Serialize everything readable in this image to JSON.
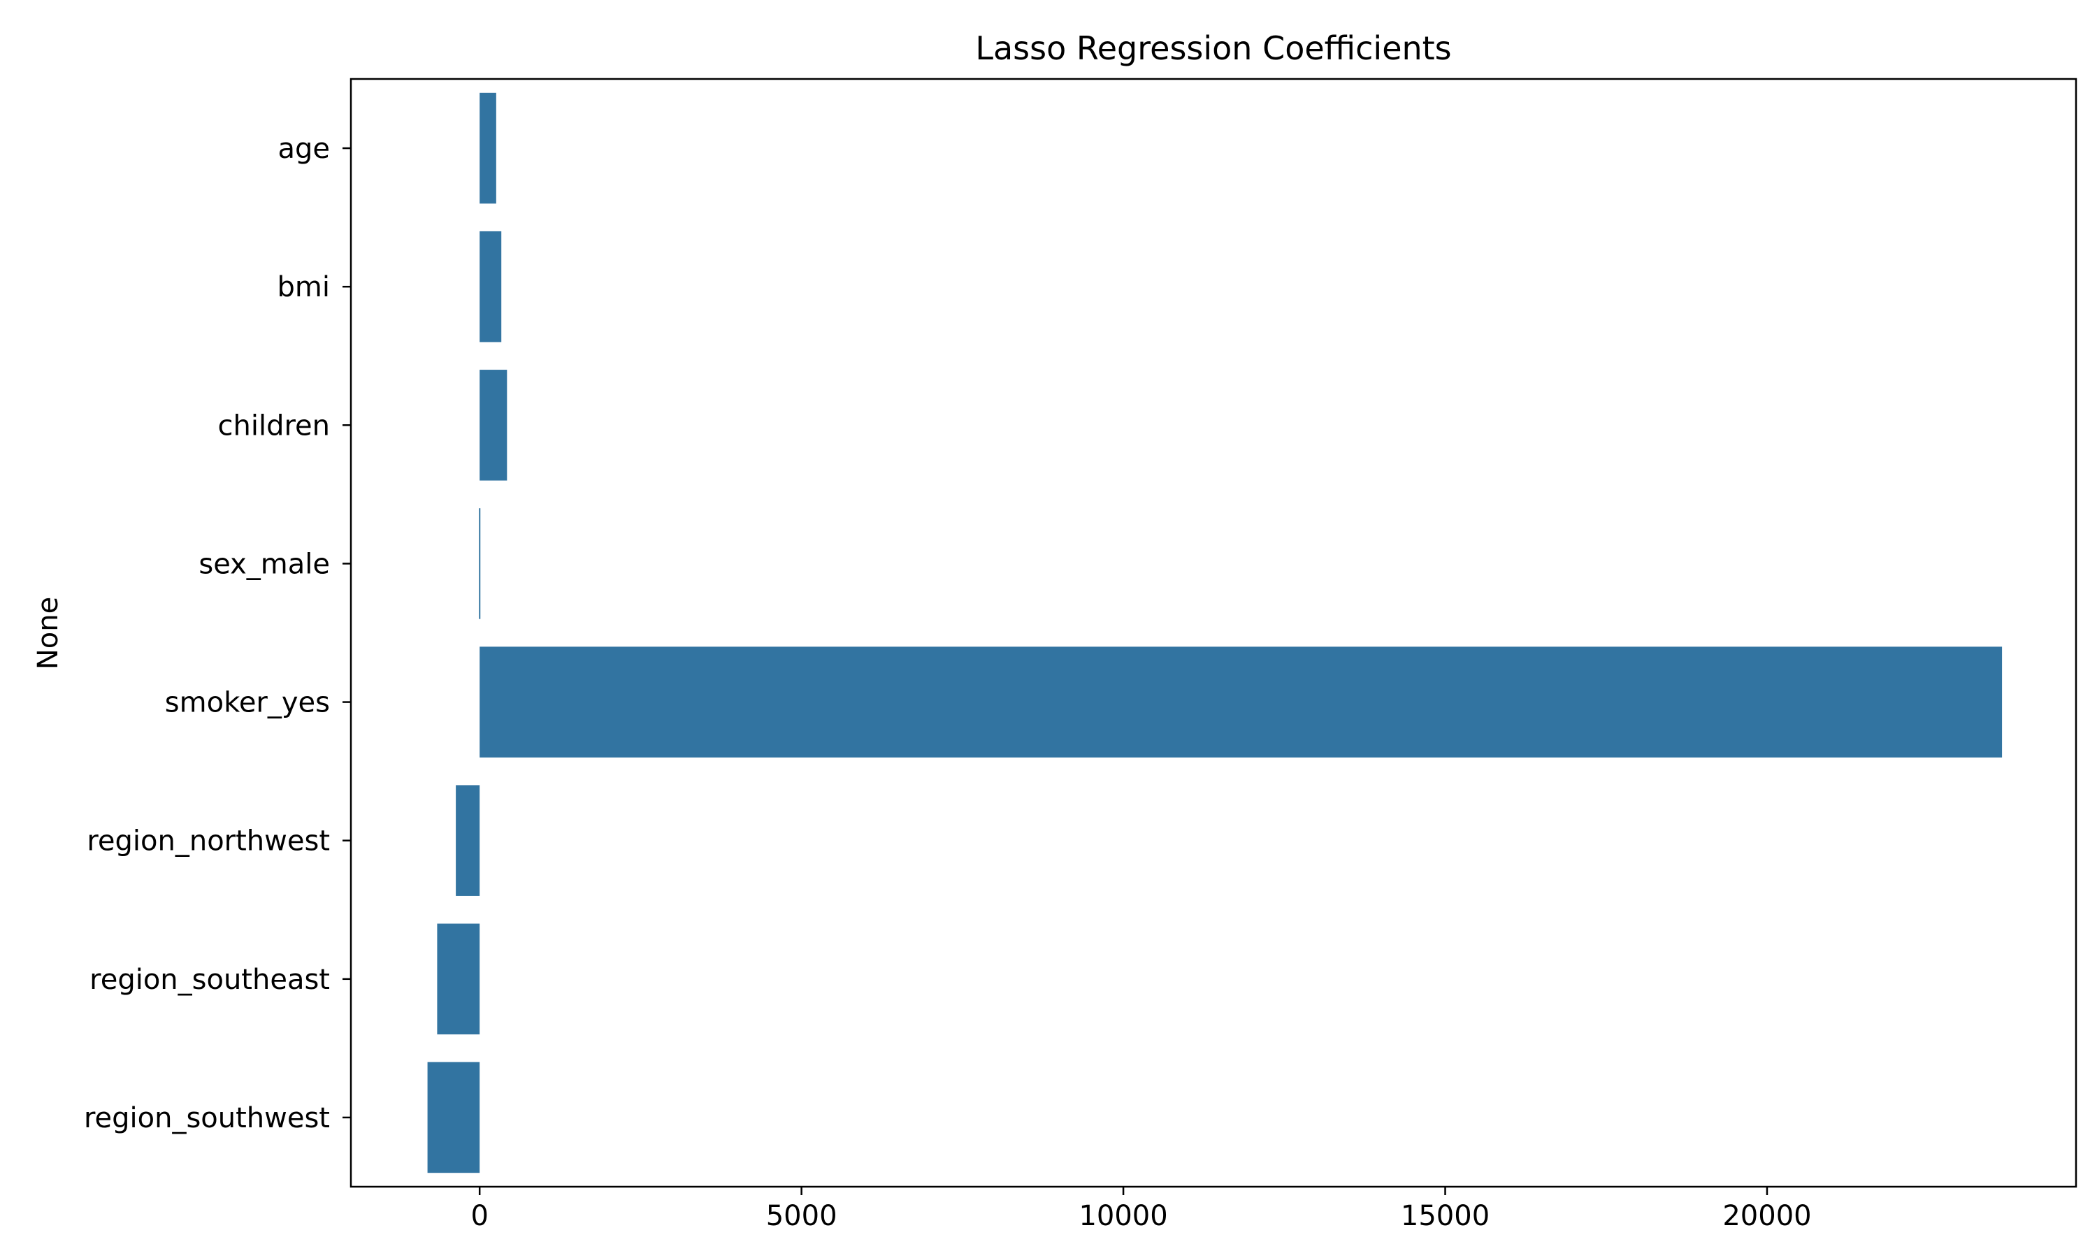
{
  "chart_data": {
    "type": "bar",
    "orientation": "horizontal",
    "title": "Lasso Regression Coefficients",
    "xlabel": "",
    "ylabel": "None",
    "categories": [
      "age",
      "bmi",
      "children",
      "sex_male",
      "smoker_yes",
      "region_northwest",
      "region_southeast",
      "region_southwest"
    ],
    "values": [
      257,
      337,
      425,
      -10,
      23650,
      -370,
      -660,
      -810
    ],
    "xlim": [
      -2000,
      24800
    ],
    "xticks": [
      0,
      5000,
      10000,
      15000,
      20000
    ],
    "xtick_labels": [
      "0",
      "5000",
      "10000",
      "15000",
      "20000"
    ],
    "bar_color": "#3274a1",
    "grid": false,
    "legend": "none"
  }
}
